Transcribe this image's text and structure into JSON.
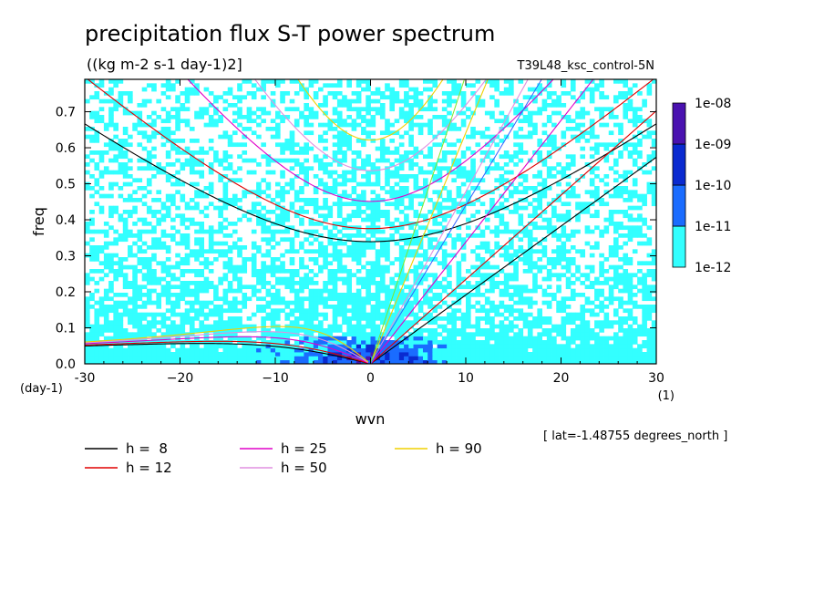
{
  "chart_data": {
    "type": "heatmap",
    "title": "precipitation flux S-T power spectrum",
    "subtitle": "((kg m-2 s-1 day-1)2]",
    "run_label": "T39L48_ksc_control-5N",
    "xlabel": "wvn",
    "ylabel": "freq",
    "x_unit": "(1)",
    "y_unit": "(day-1)",
    "xlim": [
      -30,
      30
    ],
    "ylim": [
      0,
      0.79
    ],
    "x_ticks": [
      -30,
      -20,
      -10,
      0,
      10,
      20,
      30
    ],
    "x_tick_labels": [
      "-30",
      "−20",
      "−10",
      "0",
      "10",
      "20",
      "30"
    ],
    "y_ticks": [
      0,
      0.1,
      0.2,
      0.3,
      0.4,
      0.5,
      0.6,
      0.7
    ],
    "y_tick_labels": [
      "0.0",
      "0.1",
      "0.2",
      "0.3",
      "0.4",
      "0.5",
      "0.6",
      "0.7"
    ],
    "colorbar": {
      "levels": [
        "1e-12",
        "1e-11",
        "1e-10",
        "1e-09",
        "1e-08"
      ],
      "colors": [
        "#33ffff",
        "#1a6cff",
        "#0a2ad0",
        "#4a12b0"
      ]
    },
    "footnote": "[ lat=-1.48755 degrees_north ]",
    "curves": [
      {
        "label": "h =  8",
        "h": 8,
        "color": "#000000"
      },
      {
        "label": "h = 12",
        "h": 12,
        "color": "#e00000"
      },
      {
        "label": "h = 25",
        "h": 25,
        "color": "#e000c8"
      },
      {
        "label": "h = 50",
        "h": 50,
        "color": "#e090e0"
      },
      {
        "label": "h = 90",
        "h": 90,
        "color": "#f0d000"
      }
    ],
    "green_line_color": "#7de82a",
    "blue_line_color": "#3060ff"
  }
}
